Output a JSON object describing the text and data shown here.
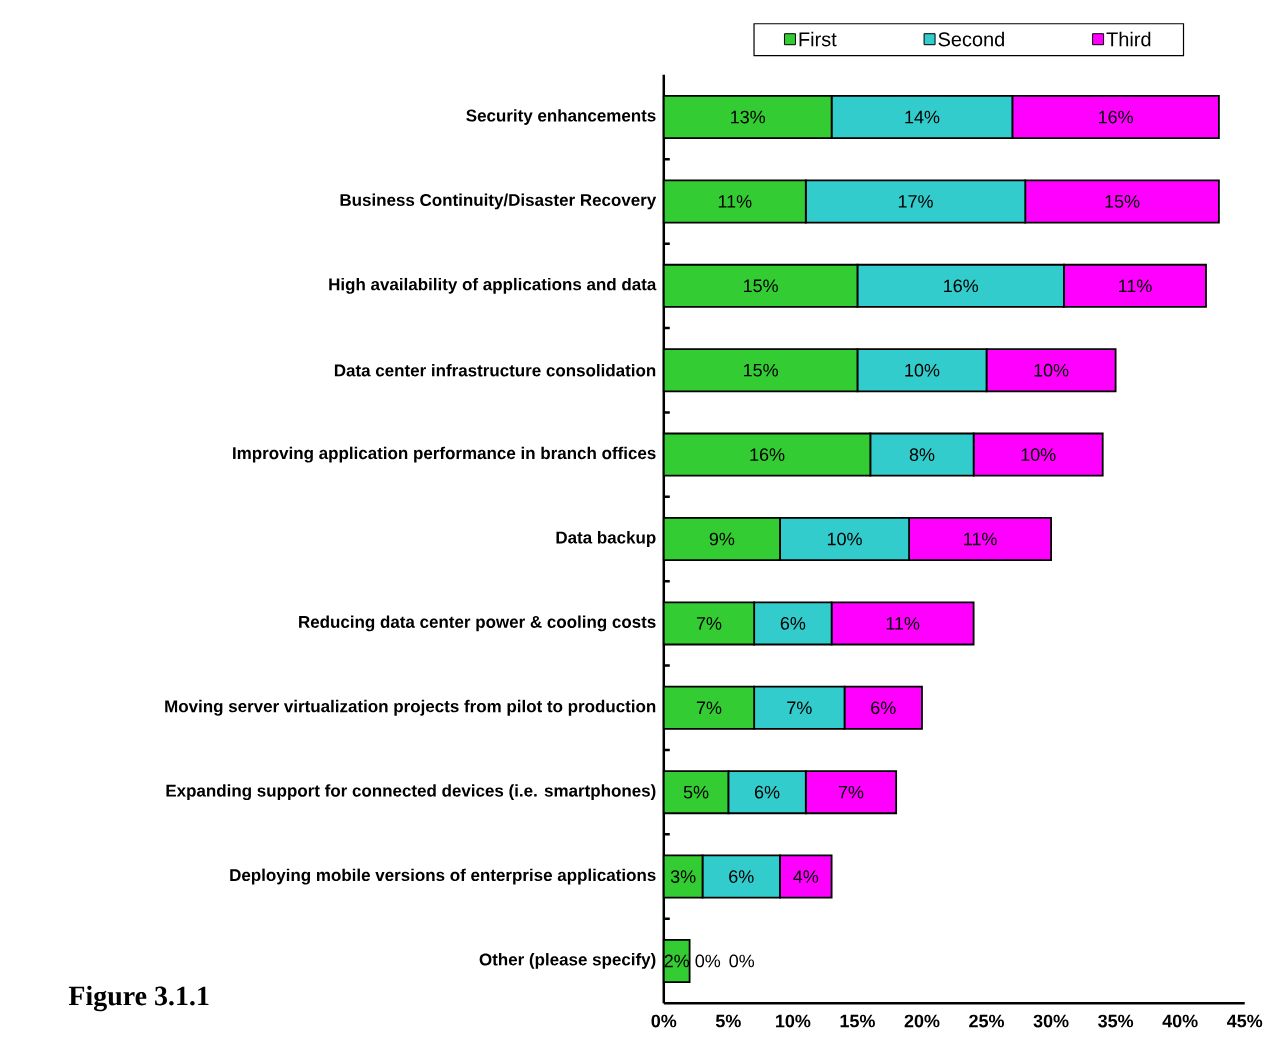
{
  "chart_data": {
    "type": "bar",
    "orientation": "horizontal",
    "stacked": true,
    "categories": [
      "Security enhancements",
      "Business Continuity/Disaster Recovery",
      "High availability of applications and data",
      "Data center infrastructure consolidation",
      "Improving application performance in branch offices",
      "Data backup",
      "Reducing data center power & cooling costs",
      "Moving server virtualization projects from pilot to production",
      "Expanding support for connected devices (i.e. smartphones)",
      "Deploying mobile versions of enterprise applications",
      "Other (please specify)"
    ],
    "series": [
      {
        "name": "First",
        "color": "#33cc33",
        "values": [
          13,
          11,
          15,
          15,
          16,
          9,
          7,
          7,
          5,
          3,
          2
        ],
        "value_labels": [
          "13%",
          "11%",
          "15%",
          "15%",
          "16%",
          "9%",
          "7%",
          "7%",
          "5%",
          "3%",
          "2%"
        ]
      },
      {
        "name": "Second",
        "color": "#33cccc",
        "values": [
          14,
          17,
          16,
          10,
          8,
          10,
          6,
          7,
          6,
          6,
          0
        ],
        "value_labels": [
          "14%",
          "17%",
          "16%",
          "10%",
          "8%",
          "10%",
          "6%",
          "7%",
          "6%",
          "6%",
          "0%"
        ]
      },
      {
        "name": "Third",
        "color": "#ff00ff",
        "values": [
          16,
          15,
          11,
          10,
          10,
          11,
          11,
          6,
          7,
          4,
          0
        ],
        "value_labels": [
          "16%",
          "15%",
          "11%",
          "10%",
          "10%",
          "11%",
          "11%",
          "6%",
          "7%",
          "4%",
          "0%"
        ]
      }
    ],
    "xlim": [
      0,
      45
    ],
    "xticks": [
      {
        "value": 0,
        "label": "0%"
      },
      {
        "value": 5,
        "label": "5%"
      },
      {
        "value": 10,
        "label": "10%"
      },
      {
        "value": 15,
        "label": "15%"
      },
      {
        "value": 20,
        "label": "20%"
      },
      {
        "value": 25,
        "label": "25%"
      },
      {
        "value": 30,
        "label": "30%"
      },
      {
        "value": 35,
        "label": "35%"
      },
      {
        "value": 40,
        "label": "40%"
      },
      {
        "value": 45,
        "label": "45%"
      }
    ],
    "legend": "top",
    "annotations": [
      "Figure 3.1.1"
    ]
  }
}
